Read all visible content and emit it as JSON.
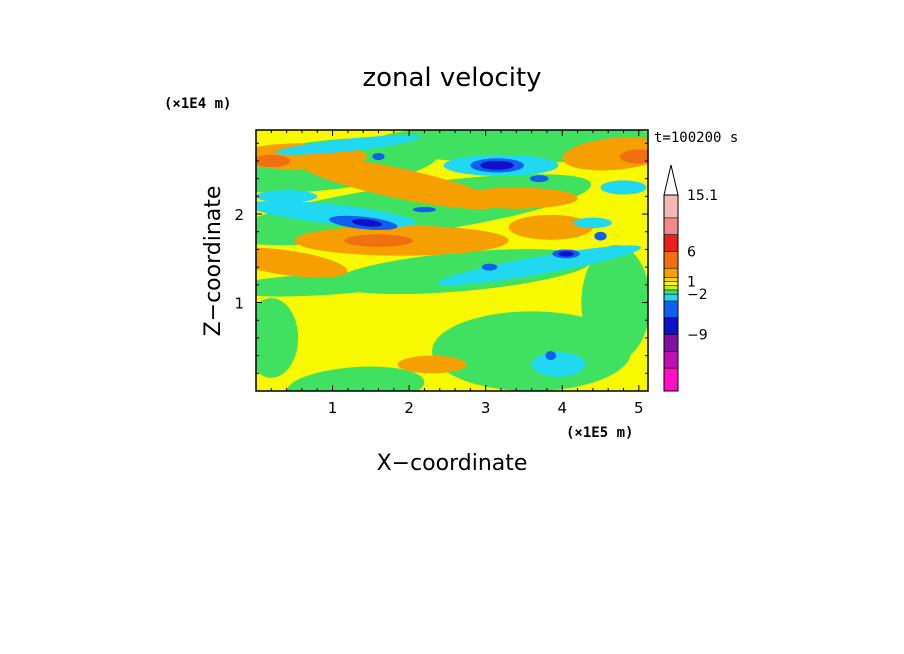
{
  "chart_data": {
    "type": "heatmap",
    "title": "zonal velocity",
    "xlabel": "X−coordinate",
    "ylabel": "Z−coordinate",
    "x_units": "(×1E5 m)",
    "y_units": "(×1E4 m)",
    "time_label": "t=100200 s",
    "xlim": [
      0,
      5.12
    ],
    "ylim": [
      0,
      2.95
    ],
    "x_ticks": [
      1,
      2,
      3,
      4,
      5
    ],
    "y_ticks": [
      1,
      2
    ],
    "x_tick_labels": [
      "1",
      "2",
      "3",
      "4",
      "5"
    ],
    "y_tick_labels": [
      "1",
      "2"
    ],
    "colorbar": {
      "labels": [
        {
          "value": 15.1,
          "text": "15.1"
        },
        {
          "value": 6,
          "text": "6"
        },
        {
          "value": 1,
          "text": "1"
        },
        {
          "value": -2,
          "text": "−2"
        },
        {
          "value": -9,
          "text": "−9"
        }
      ],
      "levels_desc": [
        15.1,
        12,
        9,
        6,
        3,
        2,
        1,
        0,
        -1,
        -2,
        -3,
        -6,
        -9,
        -12,
        -15
      ],
      "colors_desc": [
        "#f4b8b8",
        "#f08a8a",
        "#e8201c",
        "#f07010",
        "#f5a000",
        "#f0d800",
        "#f8f800",
        "#c8f020",
        "#40e060",
        "#20d8f0",
        "#1060f0",
        "#1010c8",
        "#8010a0",
        "#c010b0",
        "#ff10c8"
      ],
      "extend_max": true
    },
    "field_colors": {
      "strong_neg": "#1010c8",
      "neg": "#1060f0",
      "weak_neg": "#20d8f0",
      "near_zero_neg": "#40e060",
      "near_zero_pos": "#f8f800",
      "weak_pos": "#f5a000",
      "pos": "#f07010"
    }
  }
}
